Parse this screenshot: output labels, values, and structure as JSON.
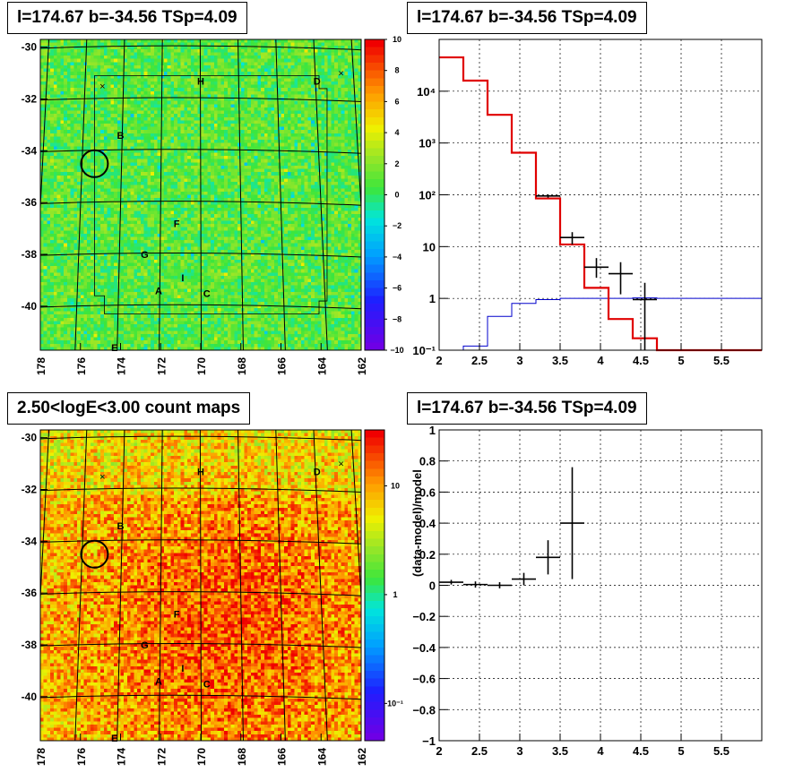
{
  "panels": {
    "top_left_title": "l=174.67 b=-34.56 TSp=4.09",
    "top_right_title": "l=174.67 b=-34.56 TSp=4.09",
    "bottom_left_title": "2.50<logE<3.00 count maps",
    "bottom_right_title": "l=174.67 b=-34.56 TSp=4.09"
  },
  "chart_data": [
    {
      "type": "heatmap",
      "panel": "residual-map",
      "xlim": [
        178,
        162
      ],
      "ylim": [
        -41.7,
        -29.7
      ],
      "x_ticks": [
        "178",
        "176",
        "174",
        "172",
        "170",
        "168",
        "166",
        "164",
        "162"
      ],
      "y_ticks": [
        "-30",
        "-32",
        "-34",
        "-36",
        "-38",
        "-40"
      ],
      "colorbar": {
        "min": -10,
        "max": 10,
        "ticks": [
          "10",
          "8",
          "6",
          "4",
          "2",
          "0",
          "−2",
          "−4",
          "−6",
          "−8",
          "−10"
        ]
      },
      "source_labels": [
        {
          "text": "B",
          "l": 174.0,
          "b": -33.4
        },
        {
          "text": "H",
          "l": 170.0,
          "b": -31.3
        },
        {
          "text": "D",
          "l": 164.2,
          "b": -31.3
        },
        {
          "text": "F",
          "l": 171.2,
          "b": -36.8
        },
        {
          "text": "G",
          "l": 172.8,
          "b": -38.0
        },
        {
          "text": "I",
          "l": 170.9,
          "b": -38.9
        },
        {
          "text": "A",
          "l": 172.1,
          "b": -39.4
        },
        {
          "text": "C",
          "l": 169.7,
          "b": -39.5
        },
        {
          "text": "E",
          "l": 174.3,
          "b": -41.6
        }
      ],
      "crosses": [
        {
          "l": 174.9,
          "b": -31.5
        },
        {
          "l": 163.0,
          "b": -31.0
        }
      ],
      "circle": {
        "l": 175.3,
        "b": -34.5
      }
    },
    {
      "type": "line",
      "panel": "spectrum",
      "y_scale": "log",
      "xlim": [
        2,
        6
      ],
      "ylim": [
        0.1,
        100000
      ],
      "x_ticks": [
        "2",
        "2.5",
        "3",
        "3.5",
        "4",
        "4.5",
        "5",
        "5.5"
      ],
      "y_ticks": [
        "10⁻¹",
        "1",
        "10",
        "10²",
        "10³",
        "10⁴"
      ],
      "model_total": {
        "edges": [
          2.0,
          2.3,
          2.6,
          2.9,
          3.2,
          3.5,
          3.8,
          4.1,
          4.4,
          4.7,
          5.0,
          6.0
        ],
        "values": [
          45000,
          16000,
          3500,
          650,
          85,
          11,
          1.6,
          0.4,
          0.17,
          0.1,
          0.1
        ]
      },
      "model_source": {
        "edges": [
          2.0,
          2.3,
          2.6,
          2.9,
          3.2,
          3.5,
          4.4,
          4.7,
          6.0
        ],
        "values": [
          0.1,
          0.12,
          0.45,
          0.8,
          0.95,
          1.0,
          1.02,
          1.0
        ]
      },
      "data_points": [
        {
          "x": 3.35,
          "xerr": 0.15,
          "y": 95,
          "ylo": 88,
          "yhi": 102
        },
        {
          "x": 3.65,
          "xerr": 0.15,
          "y": 15,
          "ylo": 11,
          "yhi": 19
        },
        {
          "x": 3.95,
          "xerr": 0.15,
          "y": 4,
          "ylo": 2.5,
          "yhi": 6
        },
        {
          "x": 4.25,
          "xerr": 0.15,
          "y": 3,
          "ylo": 1.2,
          "yhi": 5
        },
        {
          "x": 4.55,
          "xerr": 0.15,
          "y": 0.95,
          "ylo": 0.1,
          "yhi": 2
        }
      ]
    },
    {
      "type": "heatmap",
      "panel": "count-map",
      "xlim": [
        178,
        162
      ],
      "ylim": [
        -41.7,
        -29.7
      ],
      "x_ticks": [
        "178",
        "176",
        "174",
        "172",
        "170",
        "168",
        "166",
        "164",
        "162"
      ],
      "y_ticks": [
        "-30",
        "-32",
        "-34",
        "-36",
        "-38",
        "-40"
      ],
      "colorbar": {
        "scale": "log",
        "ticks": [
          "10",
          "1",
          "10⁻¹"
        ]
      },
      "source_labels": [
        {
          "text": "B",
          "l": 174.0,
          "b": -33.4
        },
        {
          "text": "H",
          "l": 170.0,
          "b": -31.3
        },
        {
          "text": "D",
          "l": 164.2,
          "b": -31.3
        },
        {
          "text": "F",
          "l": 171.2,
          "b": -36.8
        },
        {
          "text": "G",
          "l": 172.8,
          "b": -38.0
        },
        {
          "text": "I",
          "l": 170.9,
          "b": -38.9
        },
        {
          "text": "A",
          "l": 172.1,
          "b": -39.4
        },
        {
          "text": "C",
          "l": 169.7,
          "b": -39.5
        },
        {
          "text": "E",
          "l": 174.3,
          "b": -41.6
        }
      ],
      "crosses": [
        {
          "l": 174.9,
          "b": -31.5
        },
        {
          "l": 163.0,
          "b": -31.0
        }
      ],
      "circle": {
        "l": 175.3,
        "b": -34.5
      }
    },
    {
      "type": "scatter",
      "panel": "residual-ratio",
      "ylabel": "(data-model)/model",
      "xlim": [
        2,
        6
      ],
      "ylim": [
        -1,
        1
      ],
      "x_ticks": [
        "2",
        "2.5",
        "3",
        "3.5",
        "4",
        "4.5",
        "5",
        "5.5"
      ],
      "y_ticks": [
        "−1",
        "−0.8",
        "−0.6",
        "−0.4",
        "−0.2",
        "0",
        "0.2",
        "0.4",
        "0.6",
        "0.8",
        "1"
      ],
      "points": [
        {
          "x": 2.15,
          "xerr": 0.15,
          "y": 0.02,
          "yerr": 0.015
        },
        {
          "x": 2.45,
          "xerr": 0.15,
          "y": 0.005,
          "yerr": 0.02
        },
        {
          "x": 2.75,
          "xerr": 0.15,
          "y": 0.0,
          "yerr": 0.02
        },
        {
          "x": 3.05,
          "xerr": 0.15,
          "y": 0.04,
          "yerr": 0.04
        },
        {
          "x": 3.35,
          "xerr": 0.15,
          "y": 0.18,
          "yerr": 0.11
        },
        {
          "x": 3.65,
          "xerr": 0.15,
          "y": 0.4,
          "yerr": 0.36
        }
      ]
    }
  ]
}
